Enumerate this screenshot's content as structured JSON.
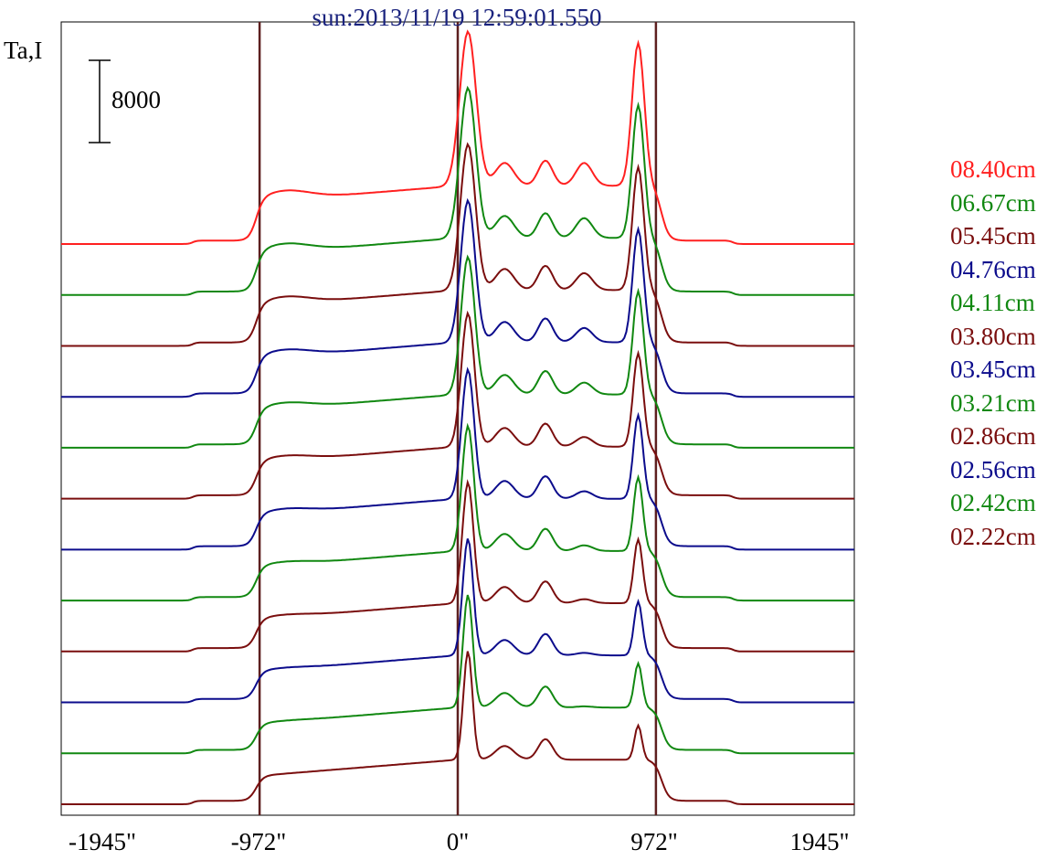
{
  "chart_data": {
    "type": "line",
    "title": "sun:2013/11/19 12:59:01.550",
    "ylabel": "Ta,I",
    "scale_bar": {
      "value": 8000,
      "label": "8000"
    },
    "x_ticks": [
      {
        "value": -1945,
        "label": "-1945\""
      },
      {
        "value": -972,
        "label": "-972\""
      },
      {
        "value": 0,
        "label": "0\""
      },
      {
        "value": 972,
        "label": "972\""
      },
      {
        "value": 1945,
        "label": "1945\""
      }
    ],
    "xlim": [
      -1945,
      1945
    ],
    "vertical_lines": [
      -972,
      0,
      972
    ],
    "colors": {
      "line_marker": "#5d1f1f",
      "frame": "#000000"
    },
    "series": [
      {
        "name": "08.40cm",
        "color": "#ff2020",
        "baseline": 0
      },
      {
        "name": "06.67cm",
        "color": "#118811",
        "baseline": 0
      },
      {
        "name": "05.45cm",
        "color": "#7a0e0e",
        "baseline": 0
      },
      {
        "name": "04.76cm",
        "color": "#0c0c8c",
        "baseline": 0
      },
      {
        "name": "04.11cm",
        "color": "#118811",
        "baseline": 0
      },
      {
        "name": "03.80cm",
        "color": "#7a0e0e",
        "baseline": 0
      },
      {
        "name": "03.45cm",
        "color": "#0c0c8c",
        "baseline": 0
      },
      {
        "name": "03.21cm",
        "color": "#118811",
        "baseline": 0
      },
      {
        "name": "02.86cm",
        "color": "#7a0e0e",
        "baseline": 0
      },
      {
        "name": "02.56cm",
        "color": "#0c0c8c",
        "baseline": 0
      },
      {
        "name": "02.42cm",
        "color": "#118811",
        "baseline": 0
      },
      {
        "name": "02.22cm",
        "color": "#7a0e0e",
        "baseline": 0
      }
    ],
    "profile_shape": {
      "x": [
        -1945,
        -1300,
        -1000,
        -972,
        -900,
        -600,
        -300,
        -50,
        0,
        60,
        100,
        160,
        200,
        300,
        430,
        500,
        600,
        700,
        850,
        930,
        972,
        1020,
        1100,
        1300,
        1945
      ],
      "description_free_units": true
    }
  }
}
